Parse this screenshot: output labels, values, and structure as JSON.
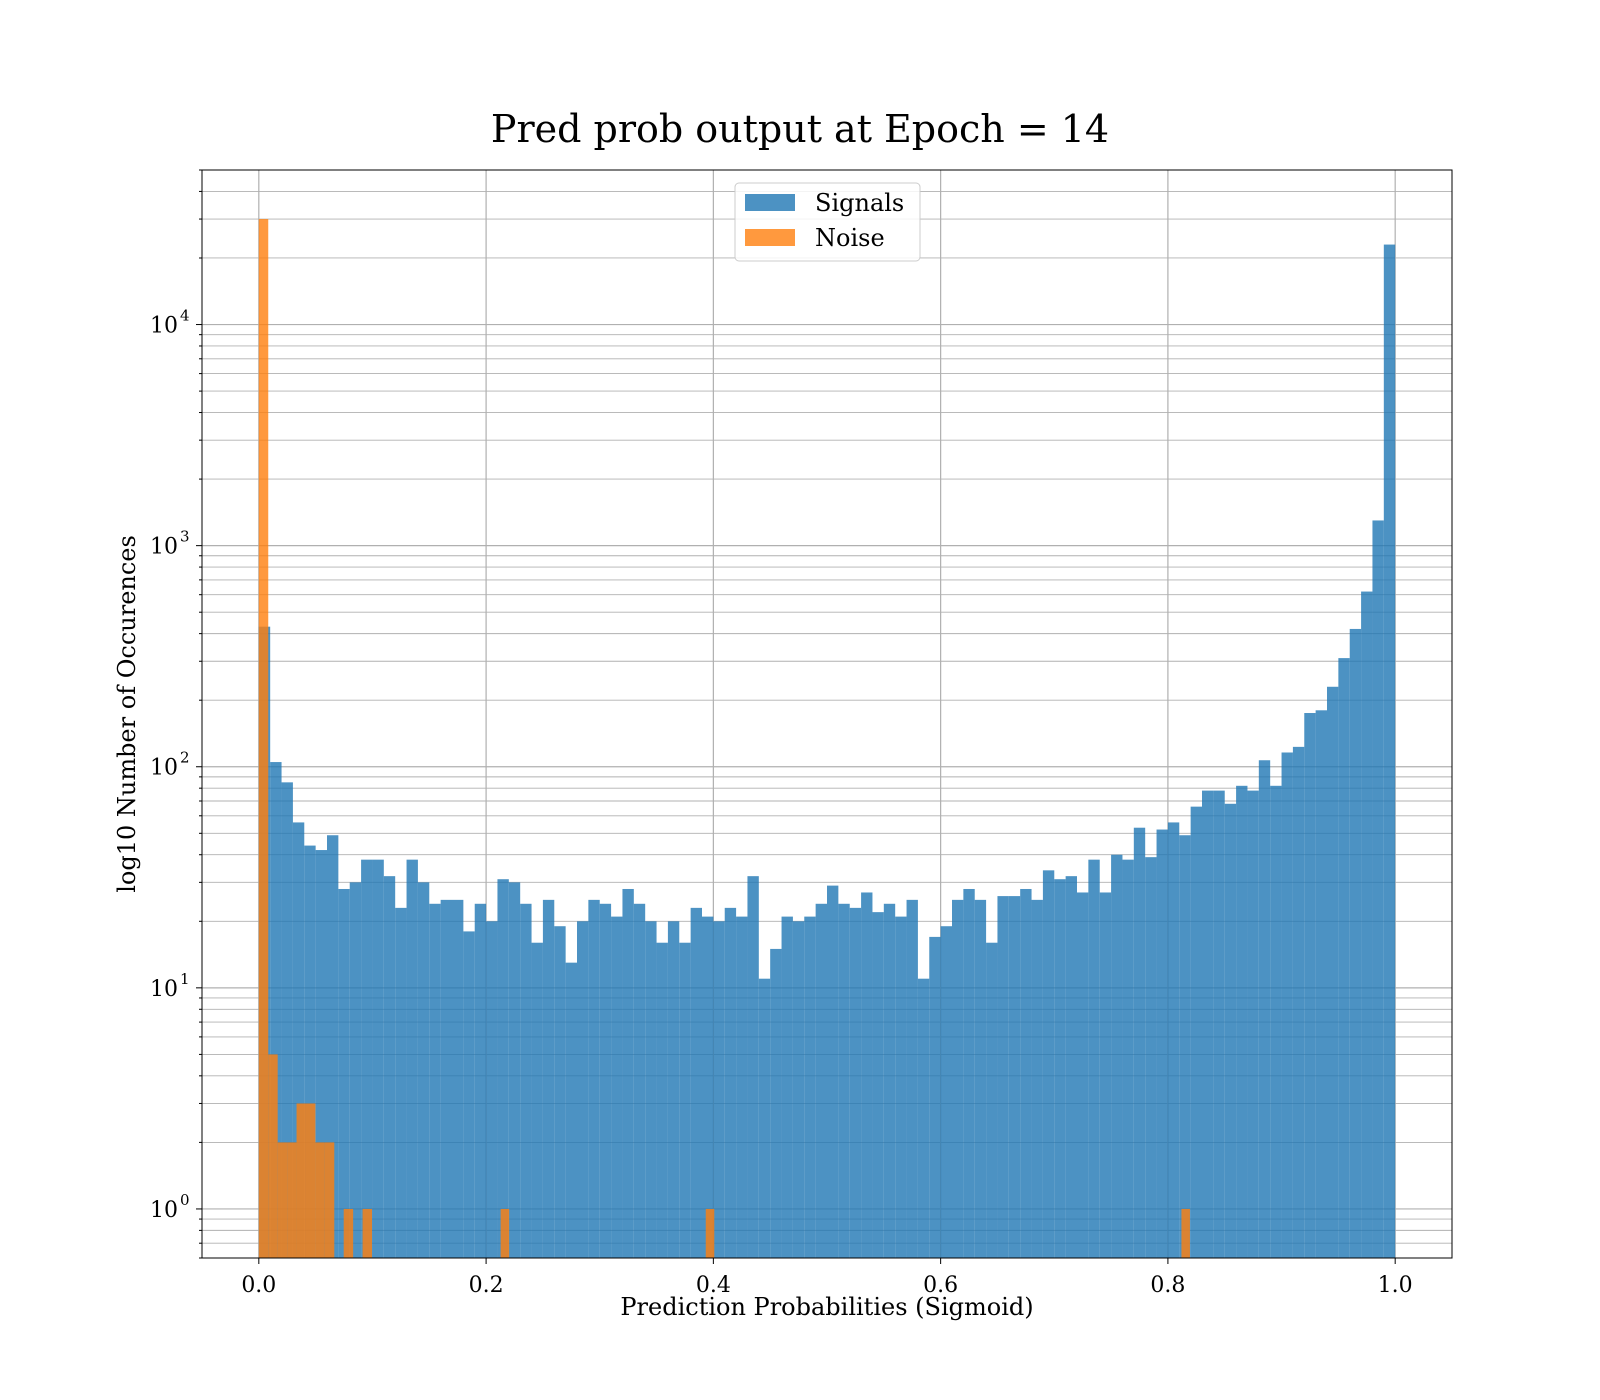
{
  "chart_data": {
    "type": "bar",
    "title": "Pred prob output at Epoch = 14",
    "xlabel": "Prediction Probabilities (Sigmoid)",
    "ylabel": "log10 Number of Occurences",
    "xlim": [
      -0.05,
      1.05
    ],
    "ylim": [
      0.6,
      50000
    ],
    "yscale": "log",
    "grid": true,
    "legend_position": "top-center",
    "xticks": [
      "0.0",
      "0.2",
      "0.4",
      "0.6",
      "0.8",
      "1.0"
    ],
    "yticks": [
      {
        "base": "10",
        "exp": "0"
      },
      {
        "base": "10",
        "exp": "1"
      },
      {
        "base": "10",
        "exp": "2"
      },
      {
        "base": "10",
        "exp": "3"
      },
      {
        "base": "10",
        "exp": "4"
      }
    ],
    "series": [
      {
        "name": "Signals",
        "color": "#1f77b4",
        "bin_width": 0.01,
        "bin_start": 0.0,
        "values": [
          430,
          105,
          85,
          56,
          44,
          42,
          49,
          28,
          30,
          38,
          38,
          32,
          23,
          38,
          30,
          24,
          25,
          25,
          18,
          24,
          20,
          31,
          30,
          24,
          16,
          25,
          19,
          13,
          20,
          25,
          24,
          21,
          28,
          24,
          20,
          16,
          20,
          16,
          23,
          21,
          20,
          23,
          21,
          32,
          11,
          15,
          21,
          20,
          21,
          24,
          29,
          24,
          23,
          27,
          22,
          24,
          21,
          25,
          11,
          17,
          19,
          25,
          28,
          25,
          16,
          26,
          26,
          28,
          25,
          34,
          31,
          32,
          27,
          38,
          27,
          40,
          38,
          53,
          39,
          52,
          56,
          49,
          66,
          78,
          78,
          68,
          82,
          78,
          107,
          82,
          116,
          123,
          175,
          180,
          230,
          310,
          420,
          620,
          1300,
          23000
        ]
      },
      {
        "name": "Noise",
        "color": "#ff7f0e",
        "bins": [
          {
            "x0": 0.0,
            "x1": 0.0083,
            "value": 30000
          },
          {
            "x0": 0.0083,
            "x1": 0.0166,
            "value": 5
          },
          {
            "x0": 0.0166,
            "x1": 0.0249,
            "value": 2
          },
          {
            "x0": 0.0249,
            "x1": 0.0332,
            "value": 2
          },
          {
            "x0": 0.0332,
            "x1": 0.0415,
            "value": 3
          },
          {
            "x0": 0.0415,
            "x1": 0.0498,
            "value": 3
          },
          {
            "x0": 0.0498,
            "x1": 0.0581,
            "value": 2
          },
          {
            "x0": 0.0581,
            "x1": 0.0664,
            "value": 2
          },
          {
            "x0": 0.0747,
            "x1": 0.083,
            "value": 1
          },
          {
            "x0": 0.0913,
            "x1": 0.0996,
            "value": 1
          },
          {
            "x0": 0.2128,
            "x1": 0.2203,
            "value": 1
          },
          {
            "x0": 0.3933,
            "x1": 0.4008,
            "value": 1
          },
          {
            "x0": 0.8119,
            "x1": 0.8194,
            "value": 1
          }
        ]
      }
    ]
  }
}
